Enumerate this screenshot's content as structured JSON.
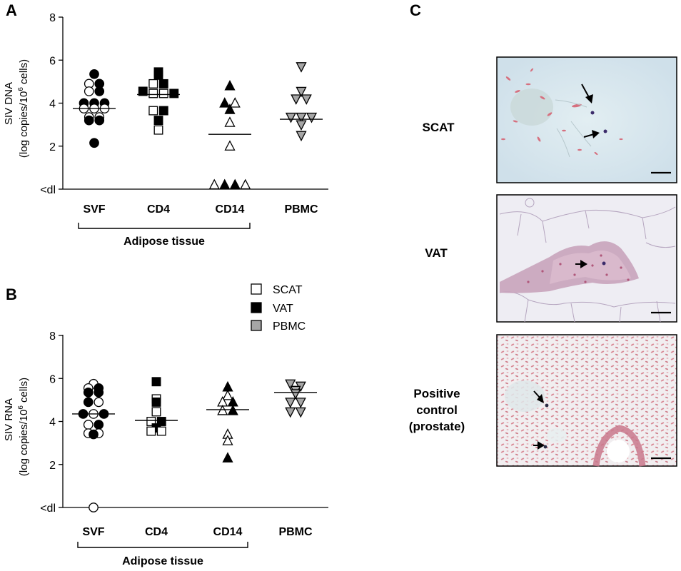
{
  "panels": {
    "A": "A",
    "B": "B",
    "C": "C"
  },
  "legend": [
    {
      "name": "SCAT",
      "color": "#ffffff"
    },
    {
      "name": "VAT",
      "color": "#000000"
    },
    {
      "name": "PBMC",
      "color": "#a6a6a6"
    }
  ],
  "chart_data": [
    {
      "type": "scatter",
      "panel": "A",
      "ylabel": {
        "line1": "SIV DNA",
        "line2_pre": "(log copies/10",
        "sup": "6",
        "line2_post": " cells)"
      },
      "ytick_labels": [
        "<dl",
        "2",
        "4",
        "6",
        "8"
      ],
      "ytick_values": [
        0,
        2,
        4,
        6,
        8
      ],
      "ylim": [
        0,
        8
      ],
      "categories": [
        "SVF",
        "CD4",
        "CD14",
        "PBMC"
      ],
      "group_label": "Adipose tissue",
      "group_categories": [
        "SVF",
        "CD4",
        "CD14"
      ],
      "medians": [
        3.75,
        4.4,
        2.55,
        3.25
      ],
      "series": [
        {
          "category": "SVF",
          "marker": "circle",
          "points": [
            {
              "y": 5.35,
              "fill": "black"
            },
            {
              "y": 4.9,
              "fill": "white"
            },
            {
              "y": 4.9,
              "fill": "black"
            },
            {
              "y": 4.55,
              "fill": "white"
            },
            {
              "y": 4.55,
              "fill": "black"
            },
            {
              "y": 4.0,
              "fill": "black"
            },
            {
              "y": 4.0,
              "fill": "black"
            },
            {
              "y": 4.0,
              "fill": "black"
            },
            {
              "y": 3.75,
              "fill": "white"
            },
            {
              "y": 3.75,
              "fill": "white"
            },
            {
              "y": 3.75,
              "fill": "white"
            },
            {
              "y": 3.35,
              "fill": "white"
            },
            {
              "y": 3.35,
              "fill": "white"
            },
            {
              "y": 3.2,
              "fill": "black"
            },
            {
              "y": 3.2,
              "fill": "black"
            },
            {
              "y": 2.15,
              "fill": "black"
            }
          ]
        },
        {
          "category": "CD4",
          "marker": "square",
          "points": [
            {
              "y": 5.45,
              "fill": "black"
            },
            {
              "y": 5.3,
              "fill": "black"
            },
            {
              "y": 4.9,
              "fill": "white"
            },
            {
              "y": 4.9,
              "fill": "black"
            },
            {
              "y": 4.55,
              "fill": "black"
            },
            {
              "y": 4.45,
              "fill": "white"
            },
            {
              "y": 4.45,
              "fill": "white"
            },
            {
              "y": 4.45,
              "fill": "black"
            },
            {
              "y": 3.65,
              "fill": "white"
            },
            {
              "y": 3.65,
              "fill": "black"
            },
            {
              "y": 3.2,
              "fill": "black"
            },
            {
              "y": 2.75,
              "fill": "white"
            }
          ]
        },
        {
          "category": "CD14",
          "marker": "triangle-up",
          "points": [
            {
              "y": 4.8,
              "fill": "black"
            },
            {
              "y": 4.0,
              "fill": "black"
            },
            {
              "y": 4.0,
              "fill": "white"
            },
            {
              "y": 3.7,
              "fill": "black"
            },
            {
              "y": 3.1,
              "fill": "white"
            },
            {
              "y": 2.0,
              "fill": "white"
            },
            {
              "y": 0.2,
              "fill": "white"
            },
            {
              "y": 0.2,
              "fill": "black"
            },
            {
              "y": 0.2,
              "fill": "black"
            },
            {
              "y": 0.2,
              "fill": "white"
            }
          ]
        },
        {
          "category": "PBMC",
          "marker": "triangle-down",
          "points": [
            {
              "y": 5.7,
              "fill": "gray"
            },
            {
              "y": 4.55,
              "fill": "gray"
            },
            {
              "y": 4.2,
              "fill": "gray"
            },
            {
              "y": 4.2,
              "fill": "gray"
            },
            {
              "y": 3.35,
              "fill": "gray"
            },
            {
              "y": 3.35,
              "fill": "gray"
            },
            {
              "y": 3.35,
              "fill": "gray"
            },
            {
              "y": 3.0,
              "fill": "gray"
            },
            {
              "y": 2.5,
              "fill": "gray"
            }
          ]
        }
      ]
    },
    {
      "type": "scatter",
      "panel": "B",
      "ylabel": {
        "line1": "SIV RNA",
        "line2_pre": "(log copies/10",
        "sup": "6",
        "line2_post": " cells)"
      },
      "ytick_labels": [
        "<dl",
        "2",
        "4",
        "6",
        "8"
      ],
      "ytick_values": [
        0,
        2,
        4,
        6,
        8
      ],
      "ylim": [
        0,
        8
      ],
      "categories": [
        "SVF",
        "CD4",
        "CD14",
        "PBMC"
      ],
      "group_label": "Adipose tissue",
      "group_categories": [
        "SVF",
        "CD4",
        "CD14"
      ],
      "medians": [
        4.35,
        4.05,
        4.55,
        5.35
      ],
      "series": [
        {
          "category": "SVF",
          "marker": "circle",
          "points": [
            {
              "y": 5.75,
              "fill": "white"
            },
            {
              "y": 5.55,
              "fill": "white"
            },
            {
              "y": 5.55,
              "fill": "black"
            },
            {
              "y": 5.35,
              "fill": "black"
            },
            {
              "y": 5.35,
              "fill": "black"
            },
            {
              "y": 4.9,
              "fill": "black"
            },
            {
              "y": 4.9,
              "fill": "white"
            },
            {
              "y": 4.35,
              "fill": "black"
            },
            {
              "y": 4.35,
              "fill": "white"
            },
            {
              "y": 4.35,
              "fill": "black"
            },
            {
              "y": 3.85,
              "fill": "white"
            },
            {
              "y": 3.85,
              "fill": "black"
            },
            {
              "y": 3.45,
              "fill": "white"
            },
            {
              "y": 3.45,
              "fill": "white"
            },
            {
              "y": 3.4,
              "fill": "black"
            },
            {
              "y": 0.0,
              "fill": "white"
            }
          ]
        },
        {
          "category": "CD4",
          "marker": "square",
          "points": [
            {
              "y": 5.85,
              "fill": "black"
            },
            {
              "y": 5.05,
              "fill": "white"
            },
            {
              "y": 4.9,
              "fill": "black"
            },
            {
              "y": 4.45,
              "fill": "white"
            },
            {
              "y": 4.0,
              "fill": "white"
            },
            {
              "y": 4.0,
              "fill": "black"
            },
            {
              "y": 3.7,
              "fill": "black"
            },
            {
              "y": 3.55,
              "fill": "white"
            },
            {
              "y": 3.55,
              "fill": "white"
            }
          ]
        },
        {
          "category": "CD14",
          "marker": "triangle-up",
          "points": [
            {
              "y": 5.6,
              "fill": "black"
            },
            {
              "y": 5.2,
              "fill": "white"
            },
            {
              "y": 4.9,
              "fill": "white"
            },
            {
              "y": 4.9,
              "fill": "black"
            },
            {
              "y": 4.5,
              "fill": "white"
            },
            {
              "y": 4.5,
              "fill": "black"
            },
            {
              "y": 3.4,
              "fill": "white"
            },
            {
              "y": 3.1,
              "fill": "white"
            },
            {
              "y": 2.3,
              "fill": "black"
            }
          ]
        },
        {
          "category": "PBMC",
          "marker": "triangle-down",
          "points": [
            {
              "y": 5.75,
              "fill": "gray"
            },
            {
              "y": 5.65,
              "fill": "gray"
            },
            {
              "y": 5.45,
              "fill": "gray"
            },
            {
              "y": 5.3,
              "fill": "gray"
            },
            {
              "y": 4.9,
              "fill": "gray"
            },
            {
              "y": 4.9,
              "fill": "gray"
            },
            {
              "y": 4.45,
              "fill": "gray"
            },
            {
              "y": 4.45,
              "fill": "gray"
            }
          ]
        }
      ]
    }
  ],
  "micrographs": [
    {
      "label_lines": [
        "SCAT"
      ]
    },
    {
      "label_lines": [
        "VAT"
      ]
    },
    {
      "label_lines": [
        "Positive",
        "control",
        "(prostate)"
      ]
    }
  ]
}
